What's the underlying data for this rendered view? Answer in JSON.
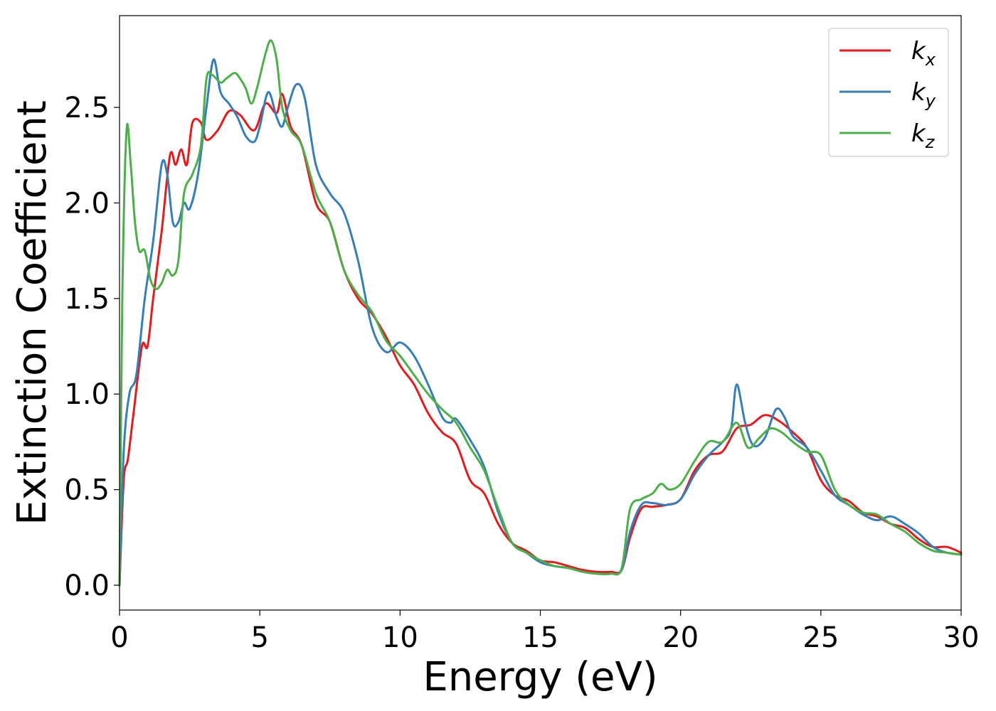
{
  "chart_data": {
    "type": "line",
    "title": "",
    "xlabel": "Energy (eV)",
    "ylabel": "Extinction Coefficient",
    "xlim": [
      0,
      30
    ],
    "ylim": [
      -0.13,
      2.98
    ],
    "xticks": [
      0,
      5,
      10,
      15,
      20,
      25,
      30
    ],
    "xtick_labels": [
      "0",
      "5",
      "10",
      "15",
      "20",
      "25",
      "30"
    ],
    "yticks": [
      0.0,
      0.5,
      1.0,
      1.5,
      2.0,
      2.5
    ],
    "ytick_labels": [
      "0.0",
      "0.5",
      "1.0",
      "1.5",
      "2.0",
      "2.5"
    ],
    "grid": false,
    "legend_position": "top-right",
    "series": [
      {
        "name": "k",
        "subscript": "x",
        "color": "#e41a1c",
        "x": [
          0,
          0.15,
          0.3,
          0.5,
          0.8,
          1.0,
          1.2,
          1.5,
          1.8,
          2.0,
          2.2,
          2.4,
          2.6,
          2.9,
          3.1,
          3.5,
          3.9,
          4.3,
          4.8,
          5.2,
          5.6,
          5.8,
          6.1,
          6.5,
          7.0,
          7.5,
          8.0,
          8.5,
          9.0,
          9.5,
          10.0,
          10.5,
          11.0,
          11.5,
          12.0,
          12.5,
          13.0,
          13.5,
          14.0,
          14.5,
          15.0,
          15.5,
          16.0,
          16.5,
          17.0,
          17.5,
          17.9,
          18.2,
          18.6,
          19.0,
          19.5,
          20.0,
          20.5,
          21.0,
          21.5,
          22.0,
          22.5,
          23.0,
          23.5,
          24.0,
          24.5,
          25.0,
          25.5,
          26.0,
          26.5,
          27.0,
          27.5,
          28.0,
          28.5,
          29.0,
          29.5,
          30.0
        ],
        "values": [
          0.0,
          0.55,
          0.66,
          0.9,
          1.25,
          1.25,
          1.5,
          1.85,
          2.25,
          2.2,
          2.28,
          2.2,
          2.42,
          2.42,
          2.33,
          2.38,
          2.48,
          2.46,
          2.38,
          2.52,
          2.47,
          2.57,
          2.4,
          2.3,
          2.0,
          1.9,
          1.65,
          1.5,
          1.42,
          1.3,
          1.15,
          1.05,
          0.9,
          0.8,
          0.74,
          0.55,
          0.48,
          0.32,
          0.22,
          0.18,
          0.13,
          0.12,
          0.1,
          0.08,
          0.07,
          0.07,
          0.08,
          0.25,
          0.4,
          0.41,
          0.42,
          0.45,
          0.6,
          0.68,
          0.7,
          0.82,
          0.84,
          0.89,
          0.86,
          0.8,
          0.72,
          0.55,
          0.47,
          0.44,
          0.38,
          0.36,
          0.32,
          0.3,
          0.24,
          0.2,
          0.2,
          0.17
        ]
      },
      {
        "name": "k",
        "subscript": "y",
        "color": "#377eb8",
        "x": [
          0,
          0.15,
          0.35,
          0.6,
          0.9,
          1.2,
          1.5,
          1.7,
          1.9,
          2.1,
          2.3,
          2.5,
          2.8,
          3.1,
          3.35,
          3.6,
          3.9,
          4.2,
          4.5,
          4.8,
          5.0,
          5.3,
          5.6,
          5.8,
          6.0,
          6.3,
          6.6,
          7.0,
          7.5,
          8.0,
          8.5,
          9.0,
          9.5,
          10.0,
          10.5,
          11.0,
          11.5,
          11.8,
          12.0,
          12.5,
          13.0,
          13.5,
          14.0,
          14.5,
          15.0,
          15.5,
          16.0,
          16.5,
          17.0,
          17.5,
          17.9,
          18.2,
          18.6,
          19.0,
          19.5,
          20.0,
          20.5,
          21.0,
          21.5,
          21.8,
          22.0,
          22.3,
          22.6,
          23.0,
          23.4,
          23.7,
          24.0,
          24.5,
          25.0,
          25.5,
          26.0,
          26.5,
          27.0,
          27.5,
          28.0,
          28.5,
          29.0,
          29.5,
          30.0
        ],
        "values": [
          0.0,
          0.7,
          1.0,
          1.1,
          1.5,
          1.8,
          2.2,
          2.15,
          1.9,
          1.9,
          2.0,
          1.97,
          2.15,
          2.5,
          2.75,
          2.58,
          2.52,
          2.45,
          2.35,
          2.32,
          2.4,
          2.58,
          2.45,
          2.4,
          2.5,
          2.62,
          2.55,
          2.2,
          2.05,
          1.95,
          1.7,
          1.35,
          1.22,
          1.27,
          1.2,
          1.05,
          0.88,
          0.85,
          0.87,
          0.76,
          0.62,
          0.38,
          0.22,
          0.17,
          0.12,
          0.1,
          0.09,
          0.07,
          0.06,
          0.06,
          0.08,
          0.28,
          0.42,
          0.43,
          0.42,
          0.45,
          0.58,
          0.68,
          0.75,
          0.82,
          1.05,
          0.85,
          0.73,
          0.77,
          0.92,
          0.88,
          0.78,
          0.72,
          0.6,
          0.47,
          0.42,
          0.37,
          0.34,
          0.36,
          0.32,
          0.27,
          0.2,
          0.17,
          0.16
        ]
      },
      {
        "name": "k",
        "subscript": "z",
        "color": "#4daf4a",
        "x": [
          0,
          0.1,
          0.25,
          0.4,
          0.55,
          0.7,
          0.9,
          1.1,
          1.3,
          1.5,
          1.7,
          1.9,
          2.1,
          2.3,
          2.6,
          2.9,
          3.1,
          3.3,
          3.6,
          3.8,
          4.1,
          4.3,
          4.5,
          4.7,
          4.9,
          5.2,
          5.4,
          5.6,
          5.8,
          6.1,
          6.5,
          7.0,
          7.5,
          8.0,
          8.5,
          9.0,
          9.5,
          10.0,
          10.5,
          11.0,
          11.5,
          12.0,
          12.5,
          13.0,
          13.5,
          14.0,
          14.5,
          15.0,
          15.5,
          16.0,
          16.5,
          17.0,
          17.5,
          17.9,
          18.2,
          18.6,
          19.0,
          19.3,
          19.6,
          20.0,
          20.5,
          21.0,
          21.5,
          22.0,
          22.4,
          22.8,
          23.2,
          23.6,
          24.0,
          24.5,
          25.0,
          25.5,
          26.0,
          26.5,
          27.0,
          27.5,
          28.0,
          28.5,
          29.0,
          29.5,
          30.0
        ],
        "values": [
          0.0,
          1.5,
          2.38,
          2.2,
          1.9,
          1.75,
          1.75,
          1.6,
          1.55,
          1.58,
          1.65,
          1.62,
          1.7,
          2.05,
          2.15,
          2.3,
          2.65,
          2.67,
          2.63,
          2.65,
          2.68,
          2.65,
          2.6,
          2.52,
          2.6,
          2.78,
          2.85,
          2.75,
          2.5,
          2.38,
          2.3,
          2.05,
          1.9,
          1.65,
          1.52,
          1.43,
          1.28,
          1.2,
          1.1,
          1.0,
          0.92,
          0.85,
          0.72,
          0.6,
          0.4,
          0.22,
          0.17,
          0.13,
          0.1,
          0.09,
          0.07,
          0.06,
          0.06,
          0.09,
          0.4,
          0.45,
          0.48,
          0.53,
          0.5,
          0.53,
          0.65,
          0.75,
          0.75,
          0.85,
          0.72,
          0.77,
          0.82,
          0.8,
          0.75,
          0.7,
          0.68,
          0.5,
          0.42,
          0.38,
          0.37,
          0.32,
          0.28,
          0.22,
          0.18,
          0.17,
          0.16
        ]
      }
    ]
  }
}
